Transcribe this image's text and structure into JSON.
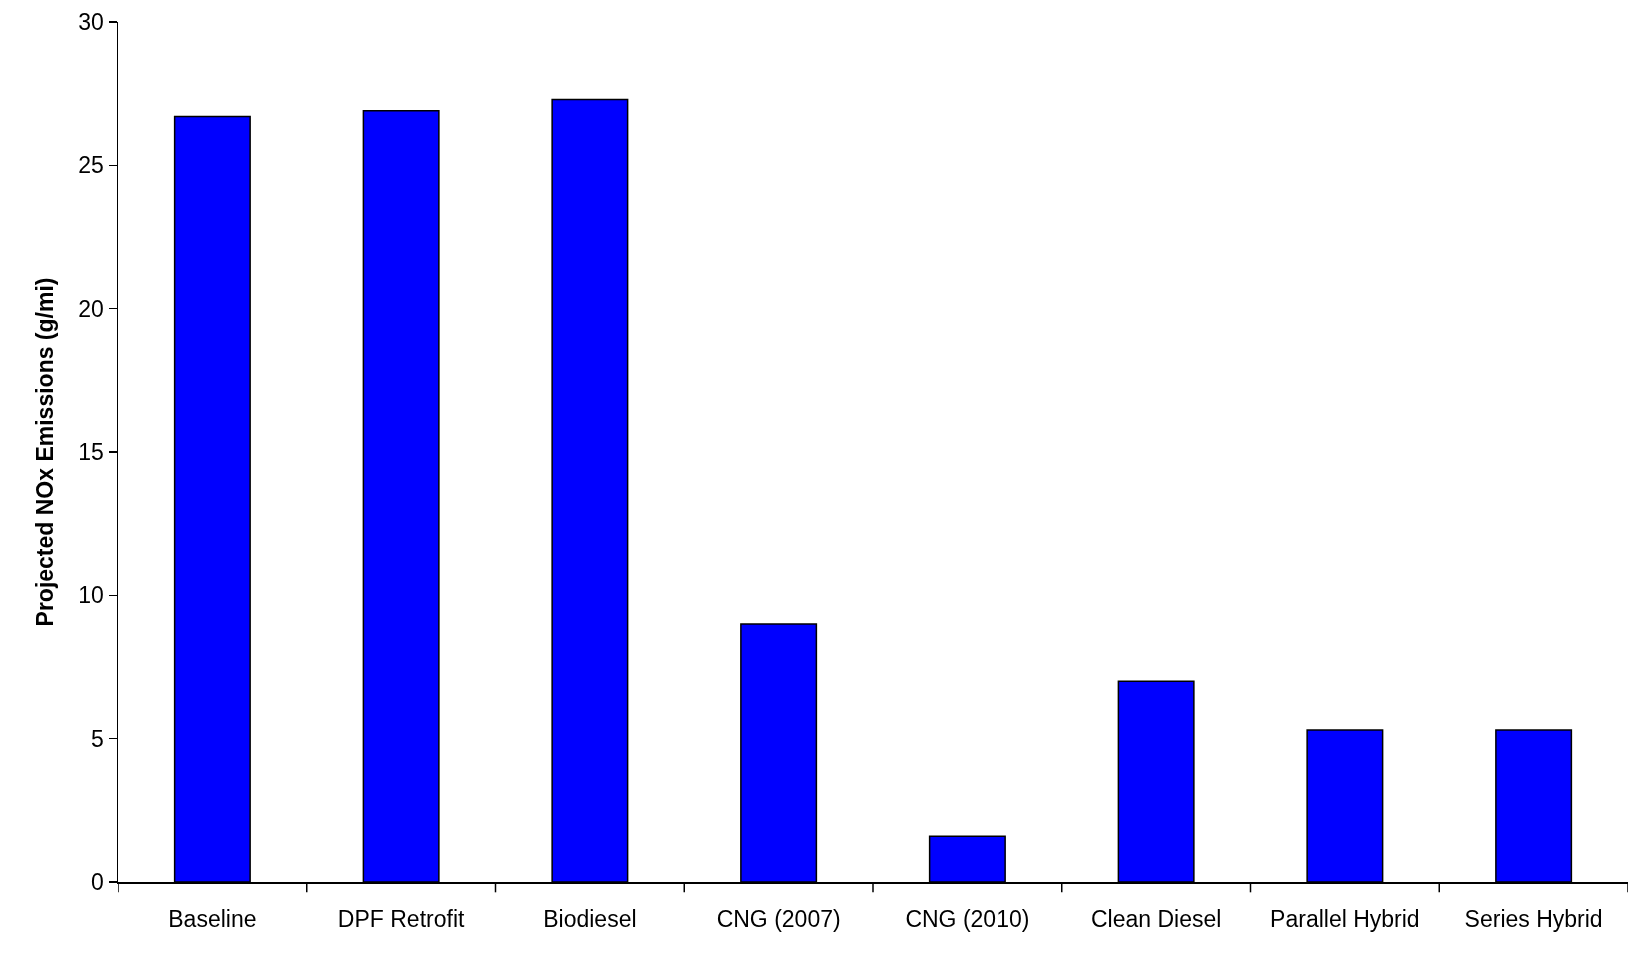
{
  "chart_data": {
    "type": "bar",
    "ylabel": "Projected NOx Emissions (g/mi)",
    "categories": [
      "Baseline",
      "DPF Retrofit",
      "Biodiesel",
      "CNG (2007)",
      "CNG (2010)",
      "Clean Diesel",
      "Parallel Hybrid",
      "Series Hybrid"
    ],
    "values": [
      26.7,
      26.9,
      27.3,
      9.0,
      1.6,
      7.0,
      5.3,
      5.3
    ],
    "color": "#0000ff",
    "ylim": [
      0,
      30
    ],
    "yticks": [
      0,
      5,
      10,
      15,
      20,
      25,
      30
    ]
  }
}
